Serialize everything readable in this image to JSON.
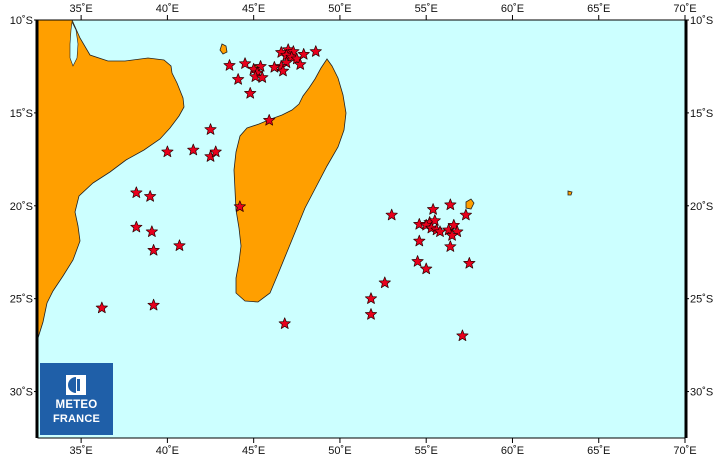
{
  "map": {
    "lon_range": [
      32.5,
      70
    ],
    "lat_range": [
      -32.5,
      -10
    ],
    "colors": {
      "ocean": "#ccffff",
      "land": "#ff9f00",
      "coast": "#222222",
      "frame": "#000000",
      "star_fill": "#e8001c",
      "star_stroke": "#2a0000"
    },
    "x_ticks": [
      {
        "value": 35,
        "label": "35˚E"
      },
      {
        "value": 40,
        "label": "40˚E"
      },
      {
        "value": 45,
        "label": "45˚E"
      },
      {
        "value": 50,
        "label": "50˚E"
      },
      {
        "value": 55,
        "label": "55˚E"
      },
      {
        "value": 60,
        "label": "60˚E"
      },
      {
        "value": 65,
        "label": "65˚E"
      },
      {
        "value": 70,
        "label": "70˚E"
      }
    ],
    "y_ticks": [
      {
        "value": -10,
        "label": "10˚S"
      },
      {
        "value": -15,
        "label": "15˚S"
      },
      {
        "value": -20,
        "label": "20˚S"
      },
      {
        "value": -25,
        "label": "25˚S"
      },
      {
        "value": -30,
        "label": "30˚S"
      }
    ],
    "epicenters": [
      [
        47.0,
        -11.6
      ],
      [
        46.6,
        -11.75
      ],
      [
        47.3,
        -11.7
      ],
      [
        46.9,
        -11.9
      ],
      [
        47.2,
        -12.0
      ],
      [
        47.5,
        -12.1
      ],
      [
        47.9,
        -11.85
      ],
      [
        48.6,
        -11.7
      ],
      [
        46.9,
        -12.3
      ],
      [
        47.7,
        -12.4
      ],
      [
        46.6,
        -12.5
      ],
      [
        46.2,
        -12.55
      ],
      [
        45.4,
        -12.5
      ],
      [
        45.0,
        -12.65
      ],
      [
        45.2,
        -12.85
      ],
      [
        44.5,
        -12.35
      ],
      [
        43.6,
        -12.45
      ],
      [
        44.1,
        -13.2
      ],
      [
        45.1,
        -13.05
      ],
      [
        45.5,
        -13.1
      ],
      [
        46.7,
        -12.75
      ],
      [
        44.8,
        -13.95
      ],
      [
        45.9,
        -15.4
      ],
      [
        42.5,
        -15.9
      ],
      [
        41.5,
        -17.0
      ],
      [
        40.0,
        -17.1
      ],
      [
        42.5,
        -17.35
      ],
      [
        42.8,
        -17.1
      ],
      [
        38.2,
        -19.3
      ],
      [
        39.0,
        -19.5
      ],
      [
        44.2,
        -20.05
      ],
      [
        38.2,
        -21.15
      ],
      [
        39.1,
        -21.4
      ],
      [
        39.2,
        -22.4
      ],
      [
        40.7,
        -22.15
      ],
      [
        36.2,
        -25.5
      ],
      [
        39.2,
        -25.35
      ],
      [
        46.8,
        -26.35
      ],
      [
        53.0,
        -20.5
      ],
      [
        54.6,
        -21.0
      ],
      [
        55.2,
        -20.9
      ],
      [
        55.4,
        -20.2
      ],
      [
        55.0,
        -21.05
      ],
      [
        55.5,
        -20.8
      ],
      [
        55.3,
        -21.2
      ],
      [
        55.6,
        -21.3
      ],
      [
        55.8,
        -21.4
      ],
      [
        56.3,
        -21.3
      ],
      [
        56.4,
        -19.95
      ],
      [
        56.6,
        -21.05
      ],
      [
        56.8,
        -21.4
      ],
      [
        56.5,
        -21.6
      ],
      [
        57.3,
        -20.5
      ],
      [
        54.6,
        -21.9
      ],
      [
        56.4,
        -22.2
      ],
      [
        54.5,
        -23.0
      ],
      [
        55.0,
        -23.4
      ],
      [
        57.5,
        -23.1
      ],
      [
        52.6,
        -24.15
      ],
      [
        51.8,
        -25.0
      ],
      [
        51.8,
        -25.85
      ],
      [
        57.1,
        -27.0
      ]
    ]
  },
  "logo": {
    "line1": "METEO",
    "line2": "FRANCE"
  }
}
